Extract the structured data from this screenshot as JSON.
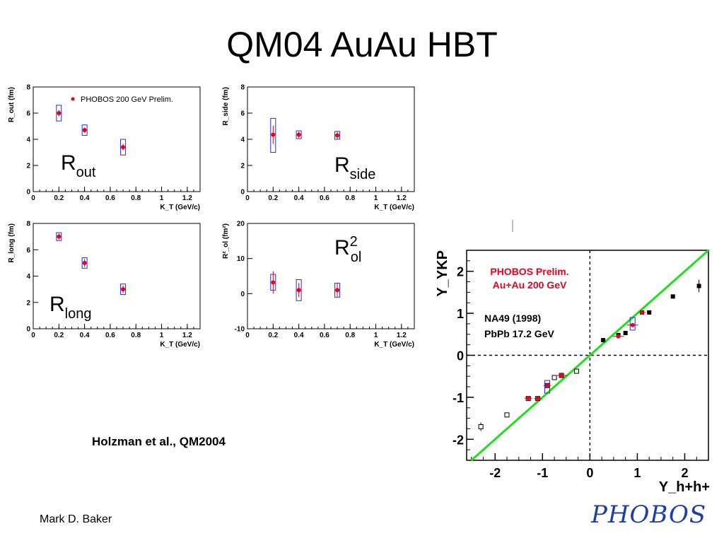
{
  "title": "QM04 AuAu HBT",
  "citation": "Holzman et al., QM2004",
  "author": "Mark D. Baker",
  "logo_text": "PHOBOS",
  "colors": {
    "red": "#e8001c",
    "blue": "#2a2ae8",
    "green": "#1fe01f",
    "black": "#000000"
  },
  "panel_labels": {
    "rout": "R",
    "rout_sub": "out",
    "rside": "R",
    "rside_sub": "side",
    "rlong": "R",
    "rlong_sub": "long",
    "rol": "R",
    "rol_sup": "2",
    "rol_sub": "ol"
  },
  "chart_data": [
    {
      "type": "scatter",
      "id": "rout",
      "ylabel": "R_out (fm)",
      "xlabel": "K_T (GeV/c)",
      "xlim": [
        0,
        1.3
      ],
      "ylim": [
        0,
        8
      ],
      "xticks": [
        "0",
        "0.2",
        "0.4",
        "0.6",
        "0.8",
        "1",
        "1.2"
      ],
      "yticks": [
        "0",
        "2",
        "4",
        "6",
        "8"
      ],
      "legend": "PHOBOS 200 GeV Prelim.",
      "x": [
        0.2,
        0.4,
        0.7
      ],
      "y": [
        6.0,
        4.7,
        3.4
      ],
      "stat_err": [
        0.25,
        0.2,
        0.25
      ],
      "sys_lo": [
        5.4,
        4.3,
        2.8
      ],
      "sys_hi": [
        6.6,
        5.1,
        4.0
      ]
    },
    {
      "type": "scatter",
      "id": "rside",
      "ylabel": "R_side (fm)",
      "xlabel": "K_T (GeV/c)",
      "xlim": [
        0,
        1.3
      ],
      "ylim": [
        0,
        8
      ],
      "xticks": [
        "0",
        "0.2",
        "0.4",
        "0.6",
        "0.8",
        "1",
        "1.2"
      ],
      "yticks": [
        "0",
        "2",
        "4",
        "6",
        "8"
      ],
      "x": [
        0.2,
        0.4,
        0.7
      ],
      "y": [
        4.35,
        4.35,
        4.3
      ],
      "stat_err": [
        0.7,
        0.25,
        0.3
      ],
      "sys_lo": [
        3.0,
        4.05,
        4.0
      ],
      "sys_hi": [
        5.6,
        4.65,
        4.6
      ]
    },
    {
      "type": "scatter",
      "id": "rlong",
      "ylabel": "R_long (fm)",
      "xlabel": "K_T (GeV/c)",
      "xlim": [
        0,
        1.3
      ],
      "ylim": [
        0,
        8
      ],
      "xticks": [
        "0",
        "0.2",
        "0.4",
        "0.6",
        "0.8",
        "1",
        "1.2"
      ],
      "yticks": [
        "0",
        "2",
        "4",
        "6",
        "8"
      ],
      "x": [
        0.2,
        0.4,
        0.7
      ],
      "y": [
        7.0,
        5.0,
        3.0
      ],
      "stat_err": [
        0.25,
        0.3,
        0.3
      ],
      "sys_lo": [
        6.7,
        4.6,
        2.6
      ],
      "sys_hi": [
        7.3,
        5.4,
        3.4
      ]
    },
    {
      "type": "scatter",
      "id": "rol",
      "ylabel": "R²_ol (fm²)",
      "xlabel": "K_T (GeV/c)",
      "xlim": [
        0,
        1.3
      ],
      "ylim": [
        -10,
        20
      ],
      "xticks": [
        "0",
        "0.2",
        "0.4",
        "0.6",
        "0.8",
        "1",
        "1.2"
      ],
      "yticks": [
        "-10",
        "0",
        "10",
        "20"
      ],
      "x": [
        0.2,
        0.4,
        0.7
      ],
      "y": [
        3.2,
        1.0,
        1.0
      ],
      "stat_err": [
        3.2,
        2.0,
        2.0
      ],
      "sys_lo": [
        1.0,
        -2.0,
        -1.0
      ],
      "sys_hi": [
        5.5,
        4.0,
        3.0
      ]
    },
    {
      "type": "scatter",
      "id": "ykp",
      "ylabel": "Y_YKP",
      "xlabel": "Y_h+h+",
      "xlim": [
        -2.6,
        2.5
      ],
      "ylim": [
        -2.5,
        2.5
      ],
      "xticks": [
        "-2",
        "-1",
        "0",
        "1",
        "2"
      ],
      "yticks": [
        "-2",
        "-1",
        "0",
        "1",
        "2"
      ],
      "legend_phobos": [
        "PHOBOS Prelim.",
        "Au+Au 200 GeV"
      ],
      "legend_na49": [
        "NA49 (1998)",
        "PbPb 17.2 GeV"
      ],
      "phobos_points": [
        {
          "x": -1.3,
          "y": -1.02
        },
        {
          "x": -1.1,
          "y": -1.03
        },
        {
          "x": -0.9,
          "y": -0.72
        },
        {
          "x": -0.6,
          "y": -0.48
        },
        {
          "x": 0.6,
          "y": 0.45
        },
        {
          "x": 0.9,
          "y": 0.72
        },
        {
          "x": 1.1,
          "y": 1.02
        }
      ],
      "phobos_xerr": [
        0.08,
        0.08,
        0.08,
        0.12,
        0.12,
        0.12,
        0.08
      ],
      "phobos_boxes": [
        {
          "x": -0.9,
          "lo": -0.9,
          "hi": -0.6
        },
        {
          "x": 0.9,
          "lo": 0.6,
          "hi": 0.9
        }
      ],
      "na49_open": [
        {
          "x": -2.3,
          "y": -1.7,
          "err": 0.1
        },
        {
          "x": -1.75,
          "y": -1.42,
          "err": 0
        },
        {
          "x": -1.3,
          "y": -1.03,
          "err": 0
        },
        {
          "x": -1.1,
          "y": -1.03,
          "err": 0
        },
        {
          "x": -0.9,
          "y": -0.72,
          "err": 0
        },
        {
          "x": -0.75,
          "y": -0.53,
          "err": 0
        },
        {
          "x": -0.6,
          "y": -0.48,
          "err": 0
        },
        {
          "x": -0.28,
          "y": -0.38,
          "err": 0
        }
      ],
      "na49_filled": [
        {
          "x": 0.28,
          "y": 0.36,
          "err": 0
        },
        {
          "x": 0.6,
          "y": 0.48,
          "err": 0
        },
        {
          "x": 0.75,
          "y": 0.53,
          "err": 0
        },
        {
          "x": 1.1,
          "y": 1.02,
          "err": 0
        },
        {
          "x": 1.25,
          "y": 1.02,
          "err": 0
        },
        {
          "x": 1.75,
          "y": 1.4,
          "err": 0
        },
        {
          "x": 2.3,
          "y": 1.65,
          "err": 0.15
        }
      ],
      "reference_line": "y = x"
    }
  ]
}
